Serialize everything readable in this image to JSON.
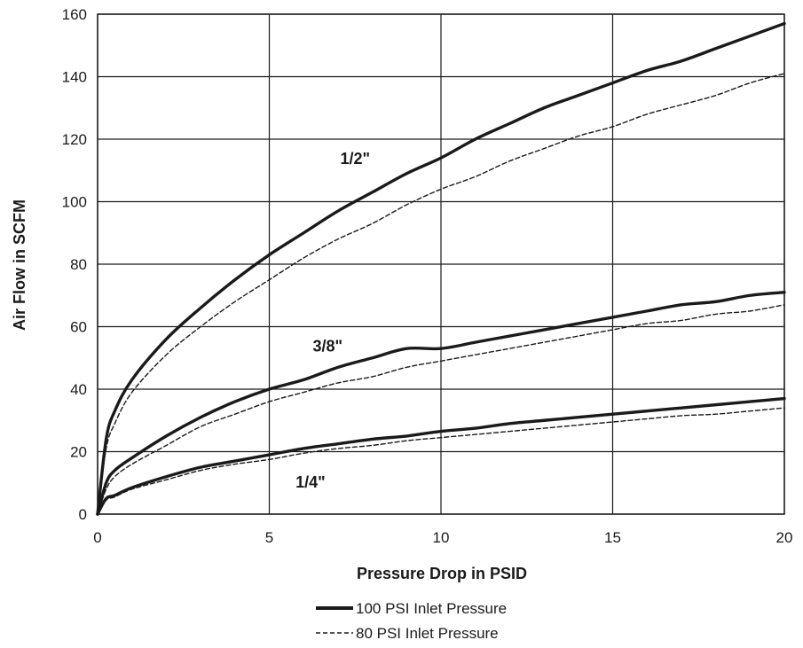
{
  "chart_data": {
    "type": "line",
    "xlabel": "Pressure Drop in PSID",
    "ylabel": "Air Flow in SCFM",
    "xlim": [
      0,
      20
    ],
    "ylim": [
      0,
      160
    ],
    "x_ticks": [
      0,
      5,
      10,
      15,
      20
    ],
    "y_ticks": [
      0,
      20,
      40,
      60,
      80,
      100,
      120,
      140,
      160
    ],
    "grid": true,
    "x": [
      0,
      0.25,
      0.5,
      1,
      2,
      3,
      4,
      5,
      6,
      7,
      8,
      9,
      10,
      11,
      12,
      13,
      14,
      15,
      16,
      17,
      18,
      19,
      20
    ],
    "series": [
      {
        "name": "100 PSI Inlet Pressure",
        "curve": "1/2\"",
        "style": "solid",
        "values": [
          0,
          24,
          33,
          43,
          56,
          66,
          75,
          83,
          90,
          97,
          103,
          109,
          114,
          120,
          125,
          130,
          134,
          138,
          142,
          145,
          149,
          153,
          157
        ]
      },
      {
        "name": "80 PSI Inlet Pressure",
        "curve": "1/2\"",
        "style": "dashed",
        "values": [
          0,
          21,
          29,
          39,
          51,
          60,
          68,
          75,
          82,
          88,
          93,
          99,
          104,
          108,
          113,
          117,
          121,
          124,
          128,
          131,
          134,
          138,
          141
        ]
      },
      {
        "name": "100 PSI Inlet Pressure",
        "curve": "3/8\"",
        "style": "solid",
        "values": [
          0,
          10,
          14,
          18,
          25,
          31,
          36,
          40,
          43,
          47,
          50,
          53,
          53,
          55,
          57,
          59,
          61,
          63,
          65,
          67,
          68,
          70,
          71
        ]
      },
      {
        "name": "80 PSI Inlet Pressure",
        "curve": "3/8\"",
        "style": "dashed",
        "values": [
          0,
          8,
          12,
          16,
          22,
          28,
          32,
          36,
          39,
          42,
          44,
          47,
          49,
          51,
          53,
          55,
          57,
          59,
          61,
          62,
          64,
          65,
          67
        ]
      },
      {
        "name": "100 PSI Inlet Pressure",
        "curve": "1/4\"",
        "style": "solid",
        "values": [
          0,
          5,
          6,
          8.5,
          12,
          15,
          17,
          19,
          21,
          22.5,
          24,
          25,
          26.5,
          27.5,
          29,
          30,
          31,
          32,
          33,
          34,
          35,
          36,
          37
        ]
      },
      {
        "name": "80 PSI Inlet Pressure",
        "curve": "1/4\"",
        "style": "dashed",
        "values": [
          0,
          4.5,
          5.5,
          8,
          11,
          14,
          16,
          17.5,
          19.5,
          21,
          22,
          23.5,
          24.5,
          25.5,
          26.5,
          27.5,
          28.5,
          29.5,
          30.5,
          31.5,
          32,
          33,
          34
        ]
      }
    ],
    "curve_labels": [
      {
        "text": "1/2\"",
        "x": 7.5,
        "y": 112
      },
      {
        "text": "3/8\"",
        "x": 6.7,
        "y": 52
      },
      {
        "text": "1/4\"",
        "x": 6.2,
        "y": 8.5
      }
    ],
    "legend": {
      "position": "bottom-center",
      "entries": [
        {
          "label": "100 PSI Inlet Pressure",
          "style": "solid"
        },
        {
          "label": "80 PSI Inlet Pressure",
          "style": "dashed"
        }
      ]
    },
    "colors": {
      "line": "#1a1a1a",
      "grid": "#1a1a1a",
      "background": "#ffffff"
    }
  }
}
